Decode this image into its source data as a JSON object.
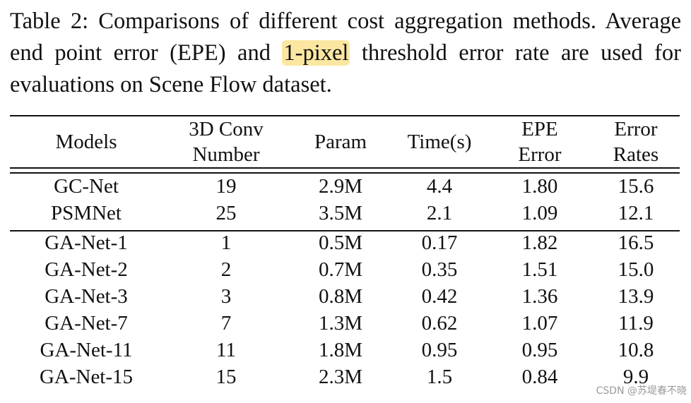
{
  "caption": {
    "prefix": "Table 2:",
    "text_before_highlight": " Comparisons of different cost aggregation methods. Average end point error (EPE) and ",
    "highlight": "1-pixel",
    "text_after_highlight": " threshold error rate are used for evaluations on Scene Flow dataset."
  },
  "columns": [
    {
      "line1": "Models",
      "line2": ""
    },
    {
      "line1": "3D Conv",
      "line2": "Number"
    },
    {
      "line1": "Param",
      "line2": ""
    },
    {
      "line1": "Time(s)",
      "line2": ""
    },
    {
      "line1": "EPE",
      "line2": "Error"
    },
    {
      "line1": "Error",
      "line2": "Rates"
    }
  ],
  "groups": [
    [
      [
        "GC-Net",
        "19",
        "2.9M",
        "4.4",
        "1.80",
        "15.6"
      ],
      [
        "PSMNet",
        "25",
        "3.5M",
        "2.1",
        "1.09",
        "12.1"
      ]
    ],
    [
      [
        "GA-Net-1",
        "1",
        "0.5M",
        "0.17",
        "1.82",
        "16.5"
      ],
      [
        "GA-Net-2",
        "2",
        "0.7M",
        "0.35",
        "1.51",
        "15.0"
      ],
      [
        "GA-Net-3",
        "3",
        "0.8M",
        "0.42",
        "1.36",
        "13.9"
      ],
      [
        "GA-Net-7",
        "7",
        "1.3M",
        "0.62",
        "1.07",
        "11.9"
      ],
      [
        "GA-Net-11",
        "11",
        "1.8M",
        "0.95",
        "0.95",
        "10.8"
      ],
      [
        "GA-Net-15",
        "15",
        "2.3M",
        "1.5",
        "0.84",
        "9.9"
      ]
    ]
  ],
  "watermark": "CSDN @苏堤春不晓",
  "colors": {
    "highlight": "#fbe7a1",
    "text": "#111111"
  }
}
